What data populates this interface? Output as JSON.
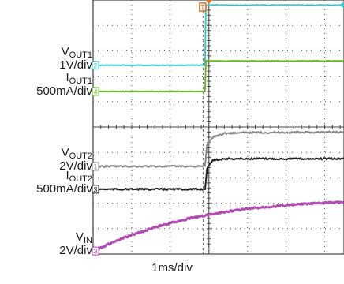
{
  "chart_data": {
    "type": "line",
    "xlabel": "1ms/div",
    "x_unit": "ms",
    "x_divisions": 6.5,
    "x_range": [
      0,
      6.5
    ],
    "grid": true,
    "series": [
      {
        "name": "VOUT1",
        "sym": "V",
        "sub": "OUT1",
        "scale": "1V/div",
        "marker": "2",
        "color": "#3ec7cc",
        "t": [
          0,
          2.9,
          2.92,
          3.0,
          6.5
        ],
        "div": [
          7.43,
          7.43,
          9.78,
          9.8,
          9.8
        ]
      },
      {
        "name": "IOUT1",
        "sym": "I",
        "sub": "OUT1",
        "scale": "500mA/div",
        "marker": "4",
        "color": "#66bb22",
        "t": [
          0,
          2.9,
          2.92,
          6.5
        ],
        "div": [
          6.4,
          6.4,
          7.6,
          7.6
        ]
      },
      {
        "name": "VOUT2",
        "sym": "V",
        "sub": "OUT2",
        "scale": "2V/div",
        "marker": "1",
        "color": "#8a8a8a",
        "t": [
          0,
          2.9,
          2.95,
          3.1,
          3.4,
          4.0,
          6.5
        ],
        "div": [
          3.45,
          3.45,
          4.3,
          4.6,
          4.75,
          4.78,
          4.8
        ]
      },
      {
        "name": "IOUT2",
        "sym": "I",
        "sub": "OUT2",
        "scale": "500mA/div",
        "marker": "3",
        "color": "#222222",
        "t": [
          0,
          2.9,
          2.95,
          3.1,
          3.4,
          4.0,
          6.5
        ],
        "div": [
          2.55,
          2.55,
          3.35,
          3.7,
          3.75,
          3.75,
          3.75
        ]
      },
      {
        "name": "VIN",
        "sym": "V",
        "sub": "IN",
        "scale": "2V/div",
        "marker": "3",
        "color": "#b24cb2",
        "t": [
          0,
          0.5,
          1.0,
          1.5,
          2.0,
          2.5,
          3.0,
          3.5,
          4.0,
          4.5,
          5.0,
          5.5,
          6.0,
          6.5
        ],
        "div": [
          0.12,
          0.45,
          0.75,
          1.0,
          1.22,
          1.4,
          1.55,
          1.68,
          1.78,
          1.86,
          1.92,
          1.97,
          2.01,
          2.04
        ]
      }
    ],
    "trigger_marker": "T"
  }
}
